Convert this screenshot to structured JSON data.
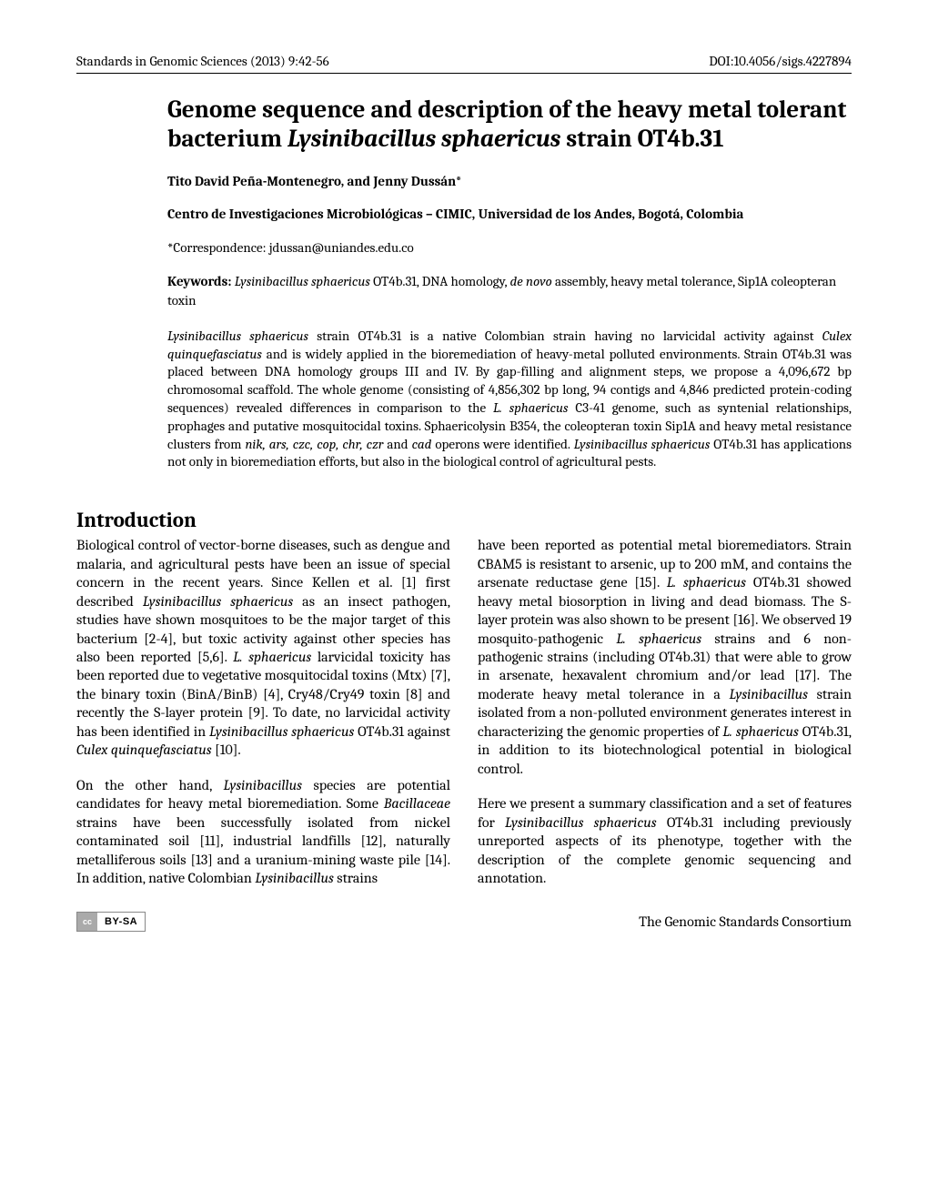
{
  "header": {
    "journal": "Standards in Genomic Sciences (2013) 9:42-56",
    "doi": "DOI:10.4056/sigs.4227894"
  },
  "title": {
    "pre": "Genome sequence and description of the heavy metal tolerant bacterium ",
    "italic": "Lysinibacillus sphaericus",
    "post": " strain OT4b.31"
  },
  "authors": "Tito David Peña-Montenegro, and Jenny Dussán*",
  "affiliation": "Centro de Investigaciones Microbiológicas – CIMIC, Universidad de los Andes, Bogotá, Colombia",
  "correspondence": "*Correspondence: jdussan@uniandes.edu.co",
  "keywords": {
    "label": "Keywords: ",
    "i1": "Lysinibacillus sphaericus",
    "t1": " OT4b.31, DNA homology, ",
    "i2": "de novo",
    "t2": " assembly, heavy metal tolerance, Sip1A coleopteran toxin"
  },
  "abstract": {
    "i1": "Lysinibacillus sphaericus",
    "t1": " strain OT4b.31 is a native Colombian strain having no larvicidal activity against ",
    "i2": "Culex quinquefasciatus",
    "t2": " and is widely applied in the bioremediation of heavy-metal polluted environments. Strain OT4b.31 was placed between DNA homology groups III and IV. By gap-filling and alignment steps, we propose a 4,096,672 bp chromosomal scaffold. The whole genome (consisting of 4,856,302 bp long, 94 contigs and 4,846 predicted protein-coding sequences) revealed differences in comparison to the ",
    "i3": "L. sphaericus",
    "t3": " C3-41 genome, such as syntenial relationships, prophages and putative mosquitocidal toxins. Sphaericolysin B354, the coleopteran toxin Sip1A and heavy metal resistance clusters from ",
    "i4": "nik, ars, czc, cop, chr, czr",
    "t4": " and ",
    "i5": "cad",
    "t5": " operons were identified. ",
    "i6": "Lysinibacillus sphaericus",
    "t6": " OT4b.31 has applications not only in bioremediation efforts, but also in the biological control of agricultural pests."
  },
  "section_heading": "Introduction",
  "col1": {
    "p1a": "Biological control of vector-borne diseases, such as dengue and malaria, and agricultural pests have been an issue of special concern in the recent years. Since Kellen et al. [1] first described ",
    "p1i1": "Lysinibacillus sphaericus",
    "p1b": " as an insect pathogen, studies have shown mosquitoes to be the major target of this bacterium [2-4], but toxic activity against other species has also been reported [5,6]. ",
    "p1i2": "L. sphaericus",
    "p1c": " larvicidal toxicity has been reported due to vegetative mosquitocidal toxins (Mtx) [7], the binary toxin (BinA/BinB) [4], Cry48/Cry49 toxin [8] and recently the S-layer protein [9]. To date, no larvicidal activity has been identified in ",
    "p1i3": "Lysinibacillus sphaericus",
    "p1d": " OT4b.31 against ",
    "p1i4": "Culex quinquefasciatus",
    "p1e": " [10].",
    "p2a": "On the other hand, ",
    "p2i1": "Lysinibacillus",
    "p2b": " species are potential candidates for heavy metal bioremediation. Some ",
    "p2i2": "Bacillaceae",
    "p2c": " strains have been successfully isolated from nickel contaminated soil [11], industrial landfills [12], naturally metalliferous soils [13] and a uranium-mining waste pile [14]. In addition, native Colombian ",
    "p2i3": "Lysinibacillus",
    "p2d": " strains"
  },
  "col2": {
    "p1a": "have been reported as potential metal bioremediators. Strain CBAM5 is resistant to arsenic, up to 200 mM, and contains the arsenate reductase gene [15]. ",
    "p1i1": "L. sphaericus",
    "p1b": " OT4b.31 showed heavy metal biosorption in living and dead biomass. The S-layer protein was also shown to be present [16]. We observed 19 mosquito-pathogenic ",
    "p1i2": "L. sphaericus",
    "p1c": " strains and 6 non-pathogenic strains (including OT4b.31) that were able to grow in arsenate, hexavalent chromium and/or lead [17]. The moderate heavy metal tolerance in a ",
    "p1i3": "Lysinibacillus",
    "p1d": " strain isolated from a non-polluted environment generates interest in characterizing the genomic properties of ",
    "p1i4": "L. sphaericus",
    "p1e": " OT4b.31, in addition to its biotechnological potential in biological control.",
    "p2a": "Here we present a summary classification and a set of features for ",
    "p2i1": "Lysinibacillus sphaericus",
    "p2b": " OT4b.31 including previously unreported aspects of its phenotype, together with the description of the complete genomic sequencing and annotation."
  },
  "footer": {
    "license": "BY-SA",
    "cc": "cc",
    "publisher": "The Genomic Standards Consortium"
  }
}
